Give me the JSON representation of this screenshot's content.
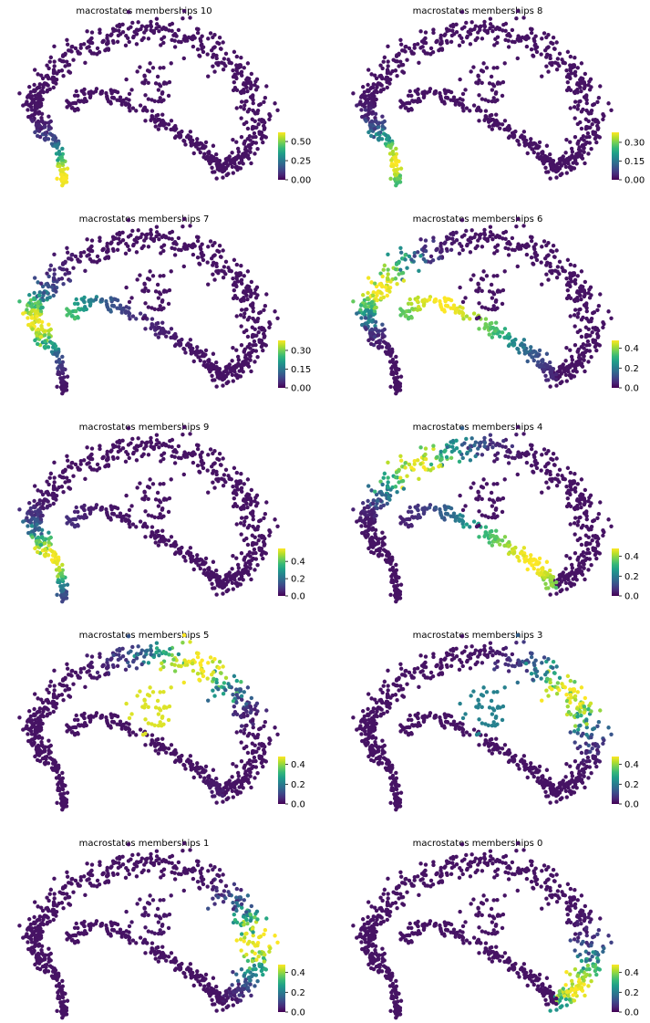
{
  "chart_data": [
    {
      "type": "scatter",
      "title": "macrostates memberships 10",
      "colorbar": {
        "ticks": [
          "0.00",
          "0.25",
          "0.50"
        ],
        "range": [
          0,
          0.62
        ]
      },
      "hotspots": [
        {
          "path_position": 0.02,
          "peak": 0.62
        }
      ]
    },
    {
      "type": "scatter",
      "title": "macrostates memberships 8",
      "colorbar": {
        "ticks": [
          "0.00",
          "0.15",
          "0.30"
        ],
        "range": [
          0,
          0.38
        ]
      },
      "hotspots": [
        {
          "path_position": 0.06,
          "peak": 0.38
        }
      ]
    },
    {
      "type": "scatter",
      "title": "macrostates memberships 7",
      "colorbar": {
        "ticks": [
          "0.00",
          "0.15",
          "0.30"
        ],
        "range": [
          0,
          0.38
        ]
      },
      "hotspots": [
        {
          "path_position": 0.2,
          "peak": 0.38
        }
      ]
    },
    {
      "type": "scatter",
      "title": "macrostates memberships 6",
      "colorbar": {
        "ticks": [
          "0.0",
          "0.2",
          "0.4"
        ],
        "range": [
          0,
          0.48
        ]
      },
      "hotspots": [
        {
          "path_position": 0.3,
          "peak": 0.48
        }
      ]
    },
    {
      "type": "scatter",
      "title": "macrostates memberships 9",
      "colorbar": {
        "ticks": [
          "0.0",
          "0.2",
          "0.4"
        ],
        "range": [
          0,
          0.55
        ]
      },
      "hotspots": [
        {
          "path_position": 0.12,
          "peak": 0.55
        }
      ]
    },
    {
      "type": "scatter",
      "title": "macrostates memberships 4",
      "colorbar": {
        "ticks": [
          "0.0",
          "0.2",
          "0.4"
        ],
        "range": [
          0,
          0.48
        ]
      },
      "hotspots": [
        {
          "path_position": 0.4,
          "peak": 0.48
        }
      ]
    },
    {
      "type": "scatter",
      "title": "macrostates memberships 5",
      "colorbar": {
        "ticks": [
          "0.0",
          "0.2",
          "0.4"
        ],
        "range": [
          0,
          0.48
        ]
      },
      "hotspots": [
        {
          "path_position": 0.6,
          "peak": 0.48
        }
      ]
    },
    {
      "type": "scatter",
      "title": "macrostates memberships 3",
      "colorbar": {
        "ticks": [
          "0.0",
          "0.2",
          "0.4"
        ],
        "range": [
          0,
          0.48
        ]
      },
      "hotspots": [
        {
          "path_position": 0.7,
          "peak": 0.48
        }
      ]
    },
    {
      "type": "scatter",
      "title": "macrostates memberships 1",
      "colorbar": {
        "ticks": [
          "0.0",
          "0.2",
          "0.4"
        ],
        "range": [
          0,
          0.48
        ]
      },
      "hotspots": [
        {
          "path_position": 0.8,
          "peak": 0.48
        }
      ]
    },
    {
      "type": "scatter",
      "title": "macrostates memberships 0",
      "colorbar": {
        "ticks": [
          "0.0",
          "0.2",
          "0.4"
        ],
        "range": [
          0,
          0.48
        ]
      },
      "hotspots": [
        {
          "path_position": 0.92,
          "peak": 0.48
        }
      ]
    }
  ],
  "colormap": "viridis",
  "viridis_stops": [
    "#440154",
    "#482878",
    "#3e4989",
    "#31688e",
    "#26828e",
    "#1f9e89",
    "#35b779",
    "#6ece58",
    "#b5de2b",
    "#fde725"
  ]
}
